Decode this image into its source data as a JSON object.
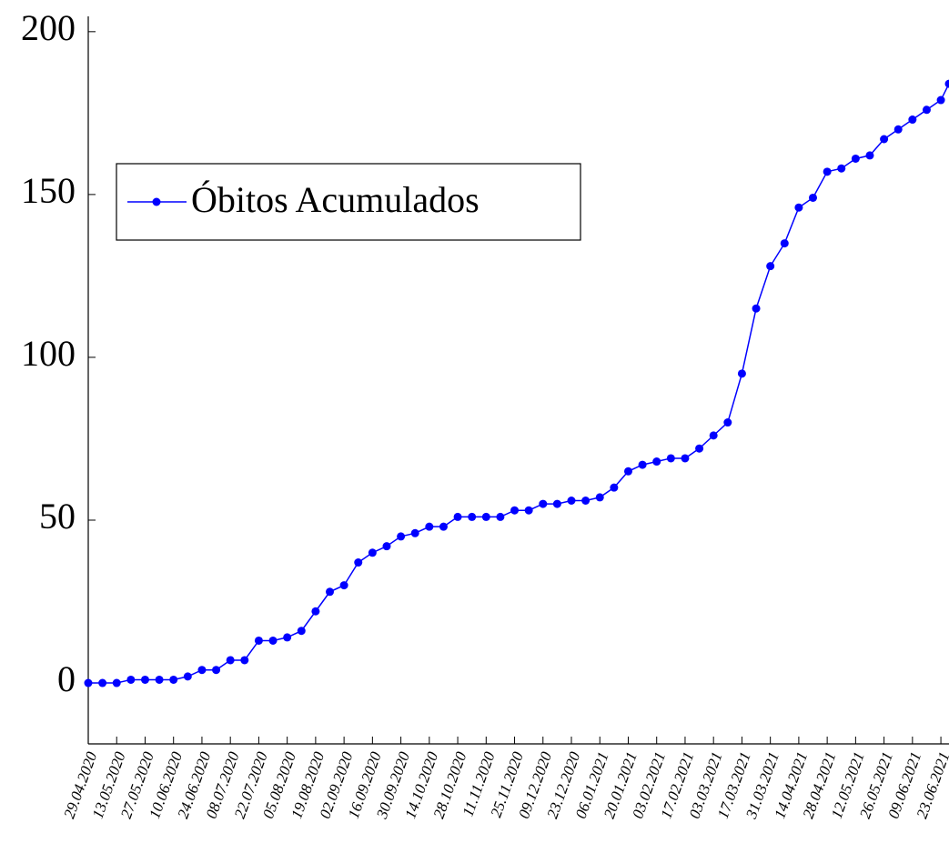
{
  "chart_data": {
    "type": "line",
    "x": [
      "29.04.2020",
      "06.05.2020",
      "13.05.2020",
      "20.05.2020",
      "27.05.2020",
      "03.06.2020",
      "10.06.2020",
      "17.06.2020",
      "24.06.2020",
      "01.07.2020",
      "08.07.2020",
      "15.07.2020",
      "22.07.2020",
      "29.07.2020",
      "05.08.2020",
      "12.08.2020",
      "19.08.2020",
      "26.08.2020",
      "02.09.2020",
      "09.09.2020",
      "16.09.2020",
      "23.09.2020",
      "30.09.2020",
      "07.10.2020",
      "14.10.2020",
      "21.10.2020",
      "28.10.2020",
      "04.11.2020",
      "11.11.2020",
      "18.11.2020",
      "25.11.2020",
      "02.12.2020",
      "09.12.2020",
      "16.12.2020",
      "23.12.2020",
      "30.12.2020",
      "06.01.2021",
      "13.01.2021",
      "20.01.2021",
      "27.01.2021",
      "03.02.2021",
      "10.02.2021",
      "17.02.2021",
      "24.02.2021",
      "03.03.2021",
      "10.03.2021",
      "17.03.2021",
      "24.03.2021",
      "31.03.2021",
      "07.04.2021",
      "14.04.2021",
      "21.04.2021",
      "28.04.2021",
      "05.05.2021",
      "12.05.2021",
      "19.05.2021",
      "26.05.2021",
      "02.06.2021",
      "09.06.2021",
      "16.06.2021",
      "23.06.2021",
      "27.06.2021"
    ],
    "series": [
      {
        "name": "Óbitos Acumulados",
        "color": "#0000ff",
        "values": [
          0,
          0,
          0,
          1,
          1,
          1,
          1,
          2,
          4,
          4,
          7,
          7,
          13,
          13,
          14,
          16,
          22,
          28,
          30,
          37,
          40,
          42,
          45,
          46,
          48,
          48,
          51,
          51,
          51,
          51,
          53,
          53,
          55,
          55,
          56,
          56,
          57,
          60,
          65,
          67,
          68,
          69,
          69,
          72,
          76,
          80,
          95,
          115,
          128,
          135,
          146,
          149,
          157,
          158,
          161,
          162,
          167,
          170,
          173,
          176,
          179,
          184
        ]
      }
    ],
    "xlim": [
      "29.04.2020",
      "27.06.2021"
    ],
    "xticks": [
      "29.04.2020",
      "13.05.2020",
      "27.05.2020",
      "10.06.2020",
      "24.06.2020",
      "08.07.2020",
      "22.07.2020",
      "05.08.2020",
      "19.08.2020",
      "02.09.2020",
      "16.09.2020",
      "30.09.2020",
      "14.10.2020",
      "28.10.2020",
      "11.11.2020",
      "25.11.2020",
      "09.12.2020",
      "23.12.2020",
      "06.01.2021",
      "20.01.2021",
      "03.02.2021",
      "17.02.2021",
      "03.03.2021",
      "17.03.2021",
      "31.03.2021",
      "14.04.2021",
      "28.04.2021",
      "12.05.2021",
      "26.05.2021",
      "09.06.2021",
      "23.06.2021"
    ],
    "ylim": [
      -18.7,
      204.7
    ],
    "yticks": [
      0,
      50,
      100,
      150,
      200
    ],
    "legend": "upper left"
  }
}
